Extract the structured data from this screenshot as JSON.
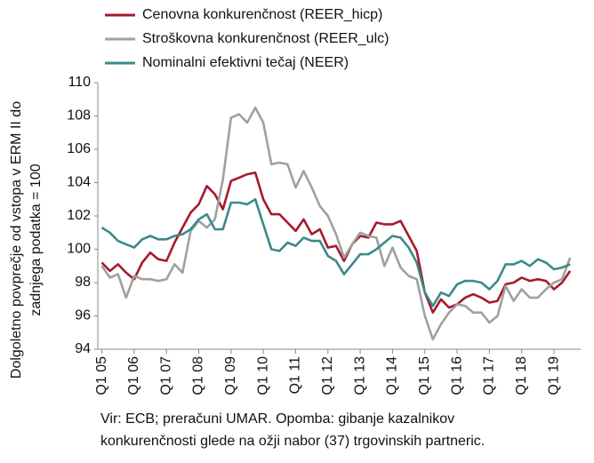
{
  "chart_data": {
    "type": "line",
    "ylabel": [
      "Dolgoletno povprečje od vstopa v ERM II do",
      "zadnjega podatka = 100"
    ],
    "note": [
      "Vir: ECB; preračuni UMAR. Opomba: gibanje kazalnikov",
      "konkurenčnosti glede na ožji nabor (37) trgovinskih partneric."
    ],
    "categories": [
      "Q1 05",
      null,
      null,
      null,
      "Q1 06",
      null,
      null,
      null,
      "Q1 07",
      null,
      null,
      null,
      "Q1 08",
      null,
      null,
      null,
      "Q1 09",
      null,
      null,
      null,
      "Q1 10",
      null,
      null,
      null,
      "Q1 11",
      null,
      null,
      null,
      "Q1 12",
      null,
      null,
      null,
      "Q1 13",
      null,
      null,
      null,
      "Q1 14",
      null,
      null,
      null,
      "Q1 15",
      null,
      null,
      null,
      "Q1 16",
      null,
      null,
      null,
      "Q1 17",
      null,
      null,
      null,
      "Q1 18",
      null,
      null,
      null,
      "Q1 19",
      null,
      null
    ],
    "series": [
      {
        "name": "Cenovna konkurenčnost (REER_hicp)",
        "color": "#a6192e",
        "values": [
          99.2,
          98.7,
          99.1,
          98.6,
          98.2,
          99.2,
          99.8,
          99.4,
          99.3,
          100.4,
          101.3,
          102.2,
          102.7,
          103.8,
          103.3,
          102.4,
          104.1,
          104.3,
          104.5,
          104.6,
          103.0,
          102.1,
          102.1,
          101.6,
          101.1,
          101.8,
          100.9,
          101.2,
          100.1,
          100.2,
          99.3,
          100.3,
          100.8,
          100.7,
          101.6,
          101.5,
          101.5,
          101.7,
          100.8,
          99.9,
          97.4,
          96.2,
          97.0,
          96.5,
          96.7,
          97.1,
          97.3,
          97.1,
          96.8,
          96.9,
          97.9,
          98.0,
          98.3,
          98.1,
          98.2,
          98.1,
          97.6,
          98.0,
          98.7
        ]
      },
      {
        "name": "Stroškovna konkurenčnost (REER_ulc)",
        "color": "#a0a0a0",
        "values": [
          99.0,
          98.3,
          98.5,
          97.1,
          98.4,
          98.2,
          98.2,
          98.1,
          98.2,
          99.1,
          98.6,
          101.1,
          101.7,
          101.3,
          101.8,
          104.2,
          107.9,
          108.1,
          107.6,
          108.5,
          107.6,
          105.1,
          105.2,
          105.1,
          103.7,
          104.7,
          103.7,
          102.6,
          102.0,
          100.9,
          99.5,
          100.3,
          101.0,
          100.8,
          100.7,
          99.0,
          100.1,
          98.9,
          98.4,
          98.2,
          96.0,
          94.6,
          95.5,
          96.2,
          96.7,
          96.6,
          96.2,
          96.2,
          95.6,
          96.0,
          97.8,
          96.9,
          97.6,
          97.1,
          97.1,
          97.6,
          98.0,
          98.2,
          99.5
        ]
      },
      {
        "name": "Nominalni efektivni tečaj (NEER)",
        "color": "#3a8a8a",
        "values": [
          101.3,
          101.0,
          100.5,
          100.3,
          100.1,
          100.6,
          100.8,
          100.6,
          100.6,
          100.8,
          100.9,
          101.2,
          101.8,
          102.1,
          101.2,
          101.2,
          102.8,
          102.8,
          102.7,
          103.0,
          101.5,
          100.0,
          99.9,
          100.4,
          100.2,
          100.7,
          100.5,
          100.5,
          99.6,
          99.3,
          98.5,
          99.1,
          99.7,
          99.7,
          100.0,
          100.4,
          100.8,
          100.7,
          100.1,
          99.2,
          97.4,
          96.6,
          97.4,
          97.2,
          97.9,
          98.1,
          98.1,
          98.0,
          97.6,
          98.1,
          99.1,
          99.1,
          99.3,
          99.0,
          99.4,
          99.2,
          98.8,
          98.9,
          99.1
        ]
      }
    ],
    "ylim": [
      94,
      110
    ],
    "yticks": [
      94,
      96,
      98,
      100,
      102,
      104,
      106,
      108,
      110
    ],
    "grid": false
  }
}
